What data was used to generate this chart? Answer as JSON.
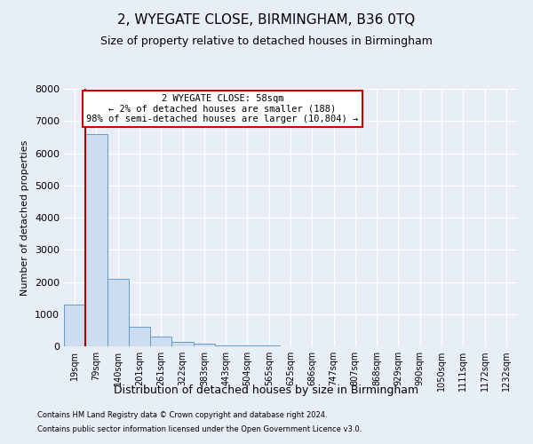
{
  "title": "2, WYEGATE CLOSE, BIRMINGHAM, B36 0TQ",
  "subtitle": "Size of property relative to detached houses in Birmingham",
  "xlabel": "Distribution of detached houses by size in Birmingham",
  "ylabel": "Number of detached properties",
  "footnote1": "Contains HM Land Registry data © Crown copyright and database right 2024.",
  "footnote2": "Contains public sector information licensed under the Open Government Licence v3.0.",
  "categories": [
    "19sqm",
    "79sqm",
    "140sqm",
    "201sqm",
    "261sqm",
    "322sqm",
    "383sqm",
    "443sqm",
    "504sqm",
    "565sqm",
    "625sqm",
    "686sqm",
    "747sqm",
    "807sqm",
    "868sqm",
    "929sqm",
    "990sqm",
    "1050sqm",
    "1111sqm",
    "1172sqm",
    "1232sqm"
  ],
  "values": [
    1300,
    6600,
    2100,
    620,
    310,
    130,
    70,
    40,
    30,
    15,
    10,
    5,
    5,
    3,
    2,
    2,
    1,
    1,
    0,
    0,
    0
  ],
  "bar_color": "#ccddf0",
  "bar_edge_color": "#6699cc",
  "highlight_color": "#aa0000",
  "annotation_title": "2 WYEGATE CLOSE: 58sqm",
  "annotation_line1": "← 2% of detached houses are smaller (188)",
  "annotation_line2": "98% of semi-detached houses are larger (10,804) →",
  "annotation_box_facecolor": "#ffffff",
  "annotation_box_edgecolor": "#cc0000",
  "ylim": [
    0,
    8000
  ],
  "yticks": [
    0,
    1000,
    2000,
    3000,
    4000,
    5000,
    6000,
    7000,
    8000
  ],
  "bg_color": "#e8eef8",
  "plot_bg_color": "#e8eef8",
  "grid_color": "#ffffff",
  "title_fontsize": 11,
  "subtitle_fontsize": 9,
  "tick_fontsize": 7,
  "ylabel_fontsize": 8,
  "xlabel_fontsize": 9,
  "footnote_fontsize": 6,
  "redline_x": 0.47
}
